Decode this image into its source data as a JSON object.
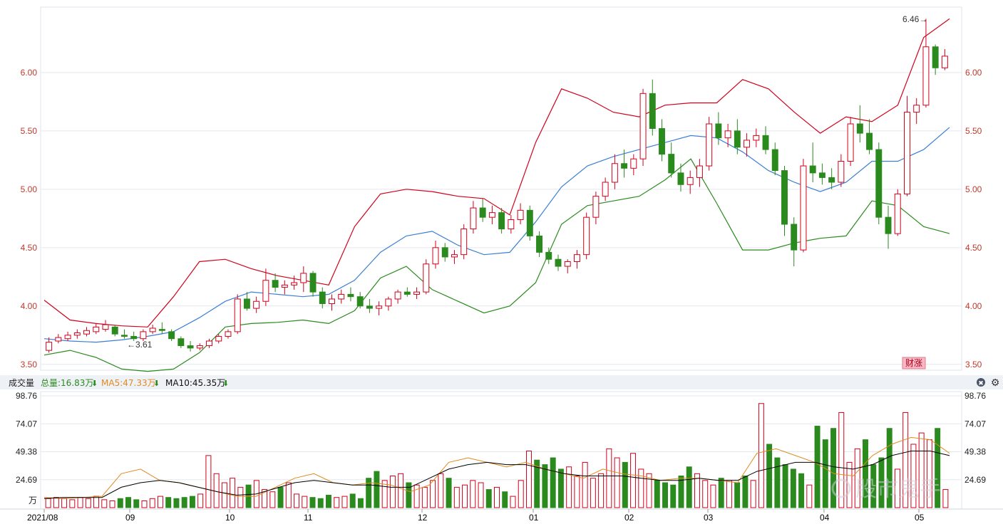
{
  "price_axis": {
    "ticks": [
      "6.00",
      "5.50",
      "5.00",
      "4.50",
      "4.00",
      "3.50"
    ],
    "range": [
      3.45,
      6.56
    ]
  },
  "annotations": {
    "high_label": "6.46→",
    "low_label": "←3.61",
    "badge": "财涨"
  },
  "volume_panel": {
    "title": "成交量",
    "total_label": "总量:16.83万",
    "ma5_label": "MA5:47.33万",
    "ma10_label": "MA10:45.35万",
    "arrow": "⬇",
    "unit": "万",
    "ticks": [
      "98.76",
      "74.07",
      "49.38",
      "24.69"
    ],
    "range": [
      0,
      98.76
    ],
    "close_icon": "✖",
    "settings_icon": "⚙"
  },
  "months": [
    "2021/08",
    "09",
    "10",
    "11",
    "12",
    "01",
    "02",
    "03",
    "04",
    "05"
  ],
  "watermark": "股市鬼手",
  "colors": {
    "up": "#d0021b",
    "down": "#2b8a1e",
    "mid": "#3b7fd4",
    "ma5": "#e08a1e",
    "ma10": "#000000"
  },
  "chart_data": [
    {
      "type": "candlestick",
      "title": "",
      "ylim": [
        3.45,
        6.56
      ],
      "ylabel": "",
      "note": "Daily candles Aug 2021 – May 2022 with Bollinger bands",
      "x_months": [
        "2021/08",
        "09",
        "10",
        "11",
        "12",
        "01",
        "02",
        "03",
        "04",
        "05"
      ],
      "ohlc_approx": [
        [
          3.62,
          3.73,
          3.6,
          3.69
        ],
        [
          3.7,
          3.76,
          3.68,
          3.73
        ],
        [
          3.72,
          3.78,
          3.7,
          3.75
        ],
        [
          3.75,
          3.8,
          3.72,
          3.77
        ],
        [
          3.76,
          3.82,
          3.74,
          3.79
        ],
        [
          3.78,
          3.85,
          3.76,
          3.82
        ],
        [
          3.8,
          3.88,
          3.78,
          3.84
        ],
        [
          3.82,
          3.84,
          3.74,
          3.76
        ],
        [
          3.75,
          3.8,
          3.72,
          3.74
        ],
        [
          3.74,
          3.78,
          3.7,
          3.72
        ],
        [
          3.72,
          3.8,
          3.7,
          3.78
        ],
        [
          3.78,
          3.84,
          3.76,
          3.81
        ],
        [
          3.8,
          3.86,
          3.76,
          3.79
        ],
        [
          3.78,
          3.8,
          3.7,
          3.72
        ],
        [
          3.72,
          3.74,
          3.64,
          3.66
        ],
        [
          3.66,
          3.7,
          3.61,
          3.64
        ],
        [
          3.64,
          3.68,
          3.62,
          3.66
        ],
        [
          3.66,
          3.72,
          3.64,
          3.7
        ],
        [
          3.7,
          3.76,
          3.68,
          3.74
        ],
        [
          3.74,
          3.8,
          3.72,
          3.78
        ],
        [
          3.78,
          4.1,
          3.76,
          4.06
        ],
        [
          4.06,
          4.12,
          3.96,
          3.98
        ],
        [
          3.98,
          4.08,
          3.94,
          4.04
        ],
        [
          4.04,
          4.32,
          4.0,
          4.22
        ],
        [
          4.22,
          4.28,
          4.12,
          4.16
        ],
        [
          4.16,
          4.22,
          4.1,
          4.18
        ],
        [
          4.18,
          4.26,
          4.14,
          4.2
        ],
        [
          4.2,
          4.34,
          4.12,
          4.28
        ],
        [
          4.28,
          4.3,
          4.08,
          4.12
        ],
        [
          4.12,
          4.16,
          3.98,
          4.02
        ],
        [
          4.02,
          4.1,
          3.96,
          4.06
        ],
        [
          4.06,
          4.14,
          4.02,
          4.1
        ],
        [
          4.1,
          4.16,
          4.04,
          4.08
        ],
        [
          4.08,
          4.12,
          3.98,
          4.0
        ],
        [
          4.0,
          4.06,
          3.94,
          3.98
        ],
        [
          3.98,
          4.04,
          3.92,
          4.0
        ],
        [
          4.0,
          4.08,
          3.96,
          4.06
        ],
        [
          4.06,
          4.14,
          4.02,
          4.12
        ],
        [
          4.12,
          4.16,
          4.08,
          4.1
        ],
        [
          4.1,
          4.16,
          4.06,
          4.12
        ],
        [
          4.12,
          4.4,
          4.1,
          4.36
        ],
        [
          4.36,
          4.56,
          4.32,
          4.5
        ],
        [
          4.5,
          4.54,
          4.38,
          4.42
        ],
        [
          4.42,
          4.48,
          4.36,
          4.44
        ],
        [
          4.44,
          4.7,
          4.4,
          4.66
        ],
        [
          4.66,
          4.9,
          4.62,
          4.84
        ],
        [
          4.84,
          4.92,
          4.72,
          4.76
        ],
        [
          4.76,
          4.86,
          4.7,
          4.8
        ],
        [
          4.8,
          4.84,
          4.62,
          4.66
        ],
        [
          4.66,
          4.78,
          4.62,
          4.74
        ],
        [
          4.74,
          4.88,
          4.7,
          4.82
        ],
        [
          4.82,
          4.86,
          4.56,
          4.6
        ],
        [
          4.6,
          4.64,
          4.42,
          4.46
        ],
        [
          4.46,
          4.5,
          4.36,
          4.4
        ],
        [
          4.4,
          4.44,
          4.3,
          4.34
        ],
        [
          4.34,
          4.4,
          4.28,
          4.38
        ],
        [
          4.38,
          4.48,
          4.32,
          4.44
        ],
        [
          4.44,
          4.8,
          4.4,
          4.76
        ],
        [
          4.76,
          4.98,
          4.7,
          4.94
        ],
        [
          4.94,
          5.1,
          4.9,
          5.06
        ],
        [
          5.06,
          5.3,
          5.0,
          5.22
        ],
        [
          5.22,
          5.34,
          5.1,
          5.18
        ],
        [
          5.18,
          5.3,
          5.12,
          5.26
        ],
        [
          5.26,
          5.86,
          5.2,
          5.82
        ],
        [
          5.82,
          5.94,
          5.46,
          5.52
        ],
        [
          5.52,
          5.6,
          5.24,
          5.3
        ],
        [
          5.3,
          5.4,
          5.1,
          5.14
        ],
        [
          5.14,
          5.22,
          4.98,
          5.04
        ],
        [
          5.04,
          5.16,
          4.96,
          5.1
        ],
        [
          5.1,
          5.26,
          5.02,
          5.2
        ],
        [
          5.2,
          5.62,
          5.16,
          5.56
        ],
        [
          5.56,
          5.66,
          5.38,
          5.44
        ],
        [
          5.44,
          5.56,
          5.36,
          5.5
        ],
        [
          5.5,
          5.6,
          5.3,
          5.36
        ],
        [
          5.36,
          5.48,
          5.28,
          5.42
        ],
        [
          5.42,
          5.52,
          5.36,
          5.46
        ],
        [
          5.46,
          5.54,
          5.3,
          5.34
        ],
        [
          5.34,
          5.4,
          5.12,
          5.16
        ],
        [
          5.16,
          5.2,
          4.6,
          4.7
        ],
        [
          4.7,
          4.76,
          4.34,
          4.48
        ],
        [
          4.48,
          5.26,
          4.46,
          5.2
        ],
        [
          5.2,
          5.4,
          5.06,
          5.14
        ],
        [
          5.14,
          5.22,
          5.04,
          5.1
        ],
        [
          5.1,
          5.18,
          5.0,
          5.06
        ],
        [
          5.06,
          5.3,
          5.02,
          5.24
        ],
        [
          5.24,
          5.62,
          5.2,
          5.56
        ],
        [
          5.56,
          5.72,
          5.4,
          5.48
        ],
        [
          5.48,
          5.6,
          5.3,
          5.34
        ],
        [
          5.34,
          5.4,
          4.7,
          4.76
        ],
        [
          4.76,
          4.86,
          4.49,
          4.62
        ],
        [
          4.62,
          5.0,
          4.6,
          4.96
        ],
        [
          4.96,
          5.8,
          4.94,
          5.66
        ],
        [
          5.66,
          5.78,
          5.56,
          5.72
        ],
        [
          5.72,
          6.46,
          5.7,
          6.22
        ],
        [
          6.22,
          6.24,
          5.98,
          6.04
        ],
        [
          6.04,
          6.2,
          6.02,
          6.14
        ]
      ],
      "bollinger": {
        "upper_approx": [
          4.05,
          3.88,
          3.85,
          3.83,
          3.82,
          4.08,
          4.38,
          4.4,
          4.32,
          4.26,
          4.22,
          4.18,
          4.68,
          4.96,
          5.0,
          4.98,
          4.94,
          4.92,
          4.78,
          5.4,
          5.86,
          5.78,
          5.66,
          5.62,
          5.72,
          5.74,
          5.74,
          5.94,
          5.86,
          5.66,
          5.48,
          5.62,
          5.58,
          5.72,
          6.3,
          6.46
        ],
        "mid_approx": [
          3.72,
          3.7,
          3.69,
          3.71,
          3.74,
          3.78,
          3.9,
          4.04,
          4.12,
          4.1,
          4.08,
          4.1,
          4.22,
          4.46,
          4.6,
          4.64,
          4.52,
          4.44,
          4.46,
          4.72,
          5.02,
          5.2,
          5.28,
          5.34,
          5.4,
          5.46,
          5.44,
          5.32,
          5.16,
          5.06,
          4.98,
          5.06,
          5.24,
          5.24,
          5.34,
          5.53
        ],
        "lower_approx": [
          3.58,
          3.62,
          3.56,
          3.46,
          3.44,
          3.46,
          3.6,
          3.82,
          3.85,
          3.86,
          3.88,
          3.85,
          3.96,
          4.24,
          4.34,
          4.14,
          4.04,
          3.94,
          4.0,
          4.2,
          4.7,
          4.86,
          4.9,
          4.94,
          5.08,
          5.26,
          4.88,
          4.48,
          4.48,
          4.54,
          4.58,
          4.6,
          4.9,
          4.86,
          4.68,
          4.62
        ]
      }
    },
    {
      "type": "bar",
      "title": "成交量",
      "ylim": [
        0,
        98.76
      ],
      "ylabel": "万",
      "volume_approx": [
        8,
        9,
        8,
        7,
        9,
        8,
        10,
        7,
        6,
        8,
        9,
        7,
        6,
        8,
        10,
        9,
        8,
        9,
        10,
        12,
        46,
        30,
        22,
        26,
        18,
        20,
        24,
        16,
        14,
        18,
        22,
        12,
        10,
        9,
        8,
        11,
        9,
        10,
        12,
        8,
        26,
        32,
        24,
        28,
        30,
        22,
        20,
        18,
        24,
        30,
        26,
        18,
        20,
        24,
        22,
        16,
        18,
        14,
        10,
        24,
        50,
        42,
        38,
        44,
        34,
        36,
        28,
        40,
        26,
        30,
        52,
        44,
        40,
        48,
        34,
        30,
        24,
        22,
        20,
        28,
        36,
        30,
        24,
        20,
        26,
        24,
        22,
        28,
        24,
        92,
        56,
        44,
        38,
        34,
        30,
        20,
        72,
        60,
        70,
        84,
        40,
        52,
        60,
        38,
        44,
        70,
        34,
        84,
        56,
        66,
        60,
        70,
        16
      ],
      "ma5_approx": [
        9,
        8,
        9,
        10,
        30,
        34,
        24,
        22,
        18,
        14,
        10,
        10,
        18,
        26,
        30,
        22,
        20,
        22,
        20,
        14,
        20,
        40,
        44,
        40,
        36,
        40,
        34,
        30,
        26,
        34,
        30,
        28,
        24,
        26,
        26,
        24,
        22,
        48,
        52,
        46,
        40,
        30,
        28,
        46,
        56,
        62,
        60,
        48
      ],
      "ma10_approx": [
        8,
        9,
        9,
        9,
        18,
        22,
        24,
        22,
        18,
        14,
        11,
        12,
        17,
        22,
        24,
        22,
        20,
        20,
        18,
        18,
        26,
        34,
        38,
        40,
        38,
        38,
        34,
        30,
        28,
        28,
        28,
        26,
        24,
        24,
        26,
        24,
        24,
        32,
        36,
        40,
        40,
        36,
        34,
        38,
        46,
        50,
        50,
        46
      ]
    }
  ]
}
